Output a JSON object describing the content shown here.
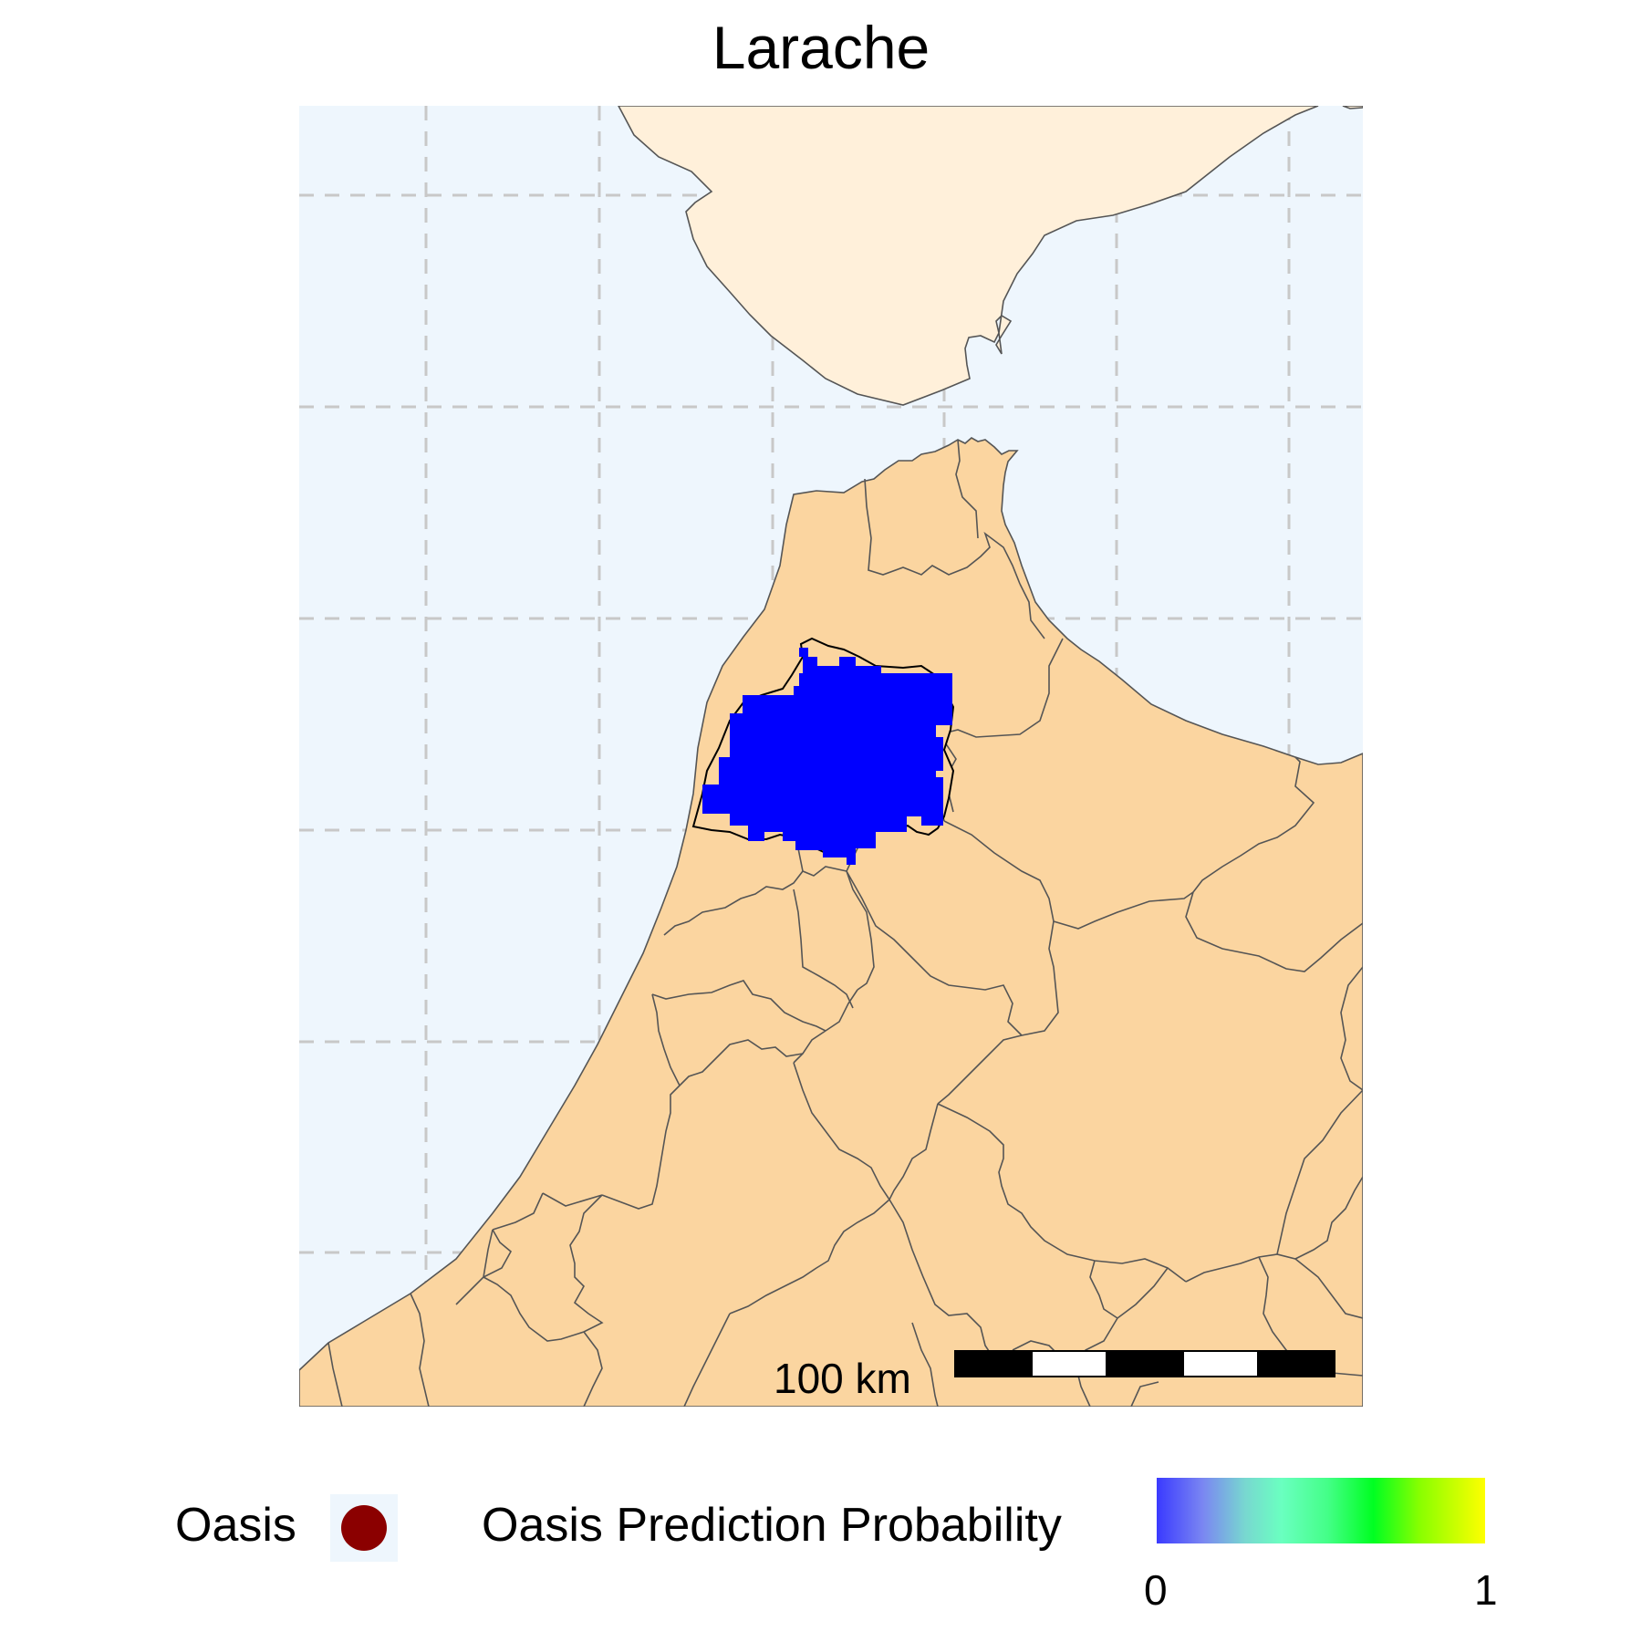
{
  "title": "Larache",
  "scale_bar": {
    "label": "100 km"
  },
  "legend": {
    "point_label": "Oasis",
    "point_color": "#8B0000",
    "gradient_label": "Oasis Prediction Probability",
    "gradient_min": "0",
    "gradient_max": "1",
    "gradient_colors": [
      "#3A3AFF",
      "#78D8D0",
      "#00FF22",
      "#FFFF00"
    ]
  },
  "map": {
    "sea_color": "#EEF6FD",
    "land_color": "#FBD5A0",
    "spain_color": "#FFF0DA",
    "highlight_color": "#0000FF",
    "highlighted_province": "Larache"
  }
}
